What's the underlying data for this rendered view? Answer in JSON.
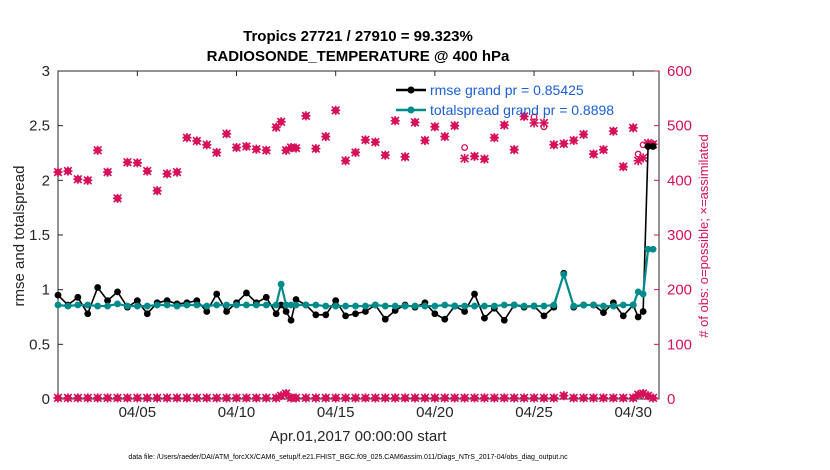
{
  "chart_data": {
    "type": "line",
    "title": "Tropics 27721 / 27910 = 99.323%",
    "subtitle": "RADIOSONDE_TEMPERATURE @ 400 hPa",
    "xlabel": "Apr.01,2017 00:00:00 start",
    "ylabel": "rmse and totalspread",
    "ylabel_right": "# of obs: o=possible; ×=assimilated",
    "footer": "data file: /Users/raeder/DAI/ATM_forcXX/CAM6_setup/f.e21.FHIST_BGC.f09_025.CAM6assim.011/Diags_NTrS_2017-04/obs_diag_output.nc",
    "xlim": [
      1.0,
      31.3
    ],
    "ylim": [
      0,
      3
    ],
    "ylim_right": [
      0,
      600
    ],
    "xticks": [
      5,
      10,
      15,
      20,
      25,
      30
    ],
    "xtick_labels": [
      "04/05",
      "04/10",
      "04/15",
      "04/20",
      "04/25",
      "04/30"
    ],
    "yticks": [
      0,
      0.5,
      1,
      1.5,
      2,
      2.5,
      3
    ],
    "ytick_labels": [
      "0",
      "0.5",
      "1",
      "1.5",
      "2",
      "2.5",
      "3"
    ],
    "yticks_right": [
      0,
      100,
      200,
      300,
      400,
      500,
      600
    ],
    "ytick_labels_right": [
      "0",
      "100",
      "200",
      "300",
      "400",
      "500",
      "600"
    ],
    "legend_position": "top-right",
    "x": [
      1.0,
      1.5,
      2.0,
      2.5,
      3.0,
      3.5,
      4.0,
      4.5,
      5.0,
      5.5,
      6.0,
      6.5,
      7.0,
      7.5,
      8.0,
      8.5,
      9.0,
      9.5,
      10.0,
      10.5,
      11.0,
      11.5,
      12.0,
      12.25,
      12.5,
      12.75,
      13.0,
      13.5,
      14.0,
      14.5,
      15.0,
      15.5,
      16.0,
      16.5,
      17.0,
      17.5,
      18.0,
      18.5,
      19.0,
      19.5,
      20.0,
      20.5,
      21.0,
      21.5,
      22.0,
      22.5,
      23.0,
      23.5,
      24.0,
      24.5,
      25.0,
      25.5,
      26.0,
      26.5,
      27.0,
      27.5,
      28.0,
      28.5,
      29.0,
      29.5,
      30.0,
      30.25,
      30.5,
      30.75,
      31.0
    ],
    "series": [
      {
        "name": "rmse grand pr = 0.85425",
        "color": "#000000",
        "values": [
          0.95,
          0.86,
          0.93,
          0.78,
          1.02,
          0.9,
          0.98,
          0.84,
          0.9,
          0.78,
          0.88,
          0.9,
          0.87,
          0.88,
          0.9,
          0.8,
          0.96,
          0.8,
          0.88,
          0.97,
          0.88,
          0.93,
          0.78,
          0.86,
          0.8,
          0.72,
          0.91,
          0.86,
          0.77,
          0.77,
          0.9,
          0.76,
          0.78,
          0.8,
          0.86,
          0.73,
          0.81,
          0.86,
          0.84,
          0.88,
          0.78,
          0.73,
          0.85,
          0.8,
          0.96,
          0.74,
          0.83,
          0.72,
          0.86,
          0.84,
          0.85,
          0.76,
          0.84,
          1.15,
          0.84,
          0.86,
          0.86,
          0.79,
          0.88,
          0.76,
          0.86,
          0.75,
          0.8,
          2.31,
          2.31
        ]
      },
      {
        "name": "totalspread grand pr = 0.8898",
        "color": "#008b8b",
        "values": [
          0.86,
          0.85,
          0.86,
          0.86,
          0.85,
          0.85,
          0.87,
          0.85,
          0.85,
          0.85,
          0.86,
          0.86,
          0.85,
          0.86,
          0.86,
          0.85,
          0.86,
          0.86,
          0.86,
          0.86,
          0.86,
          0.86,
          0.86,
          1.05,
          0.86,
          0.86,
          0.86,
          0.86,
          0.86,
          0.85,
          0.85,
          0.85,
          0.85,
          0.85,
          0.86,
          0.85,
          0.85,
          0.85,
          0.85,
          0.85,
          0.85,
          0.86,
          0.85,
          0.85,
          0.85,
          0.85,
          0.85,
          0.86,
          0.86,
          0.85,
          0.85,
          0.85,
          0.86,
          1.14,
          0.85,
          0.86,
          0.86,
          0.85,
          0.85,
          0.86,
          0.86,
          0.98,
          0.96,
          1.37,
          1.37
        ]
      }
    ],
    "obs_possible": [
      415,
      417,
      402,
      400,
      455,
      415,
      367,
      433,
      432,
      417,
      381,
      412,
      415,
      478,
      472,
      465,
      451,
      485,
      460,
      462,
      457,
      455,
      497,
      507,
      455,
      460,
      459,
      518,
      458,
      480,
      528,
      436,
      451,
      474,
      470,
      446,
      509,
      443,
      506,
      473,
      498,
      480,
      500,
      460,
      444,
      439,
      478,
      501,
      456,
      517,
      516,
      498,
      465,
      467,
      473,
      484,
      448,
      456,
      490,
      425,
      496,
      448,
      465,
      467,
      466
    ],
    "obs_assimilated": [
      415,
      417,
      402,
      400,
      455,
      415,
      367,
      433,
      432,
      417,
      381,
      412,
      415,
      478,
      472,
      465,
      451,
      485,
      460,
      462,
      457,
      455,
      497,
      507,
      455,
      460,
      459,
      518,
      458,
      480,
      528,
      436,
      451,
      474,
      470,
      446,
      509,
      443,
      506,
      473,
      498,
      480,
      500,
      440,
      444,
      439,
      478,
      501,
      456,
      517,
      505,
      505,
      465,
      467,
      473,
      484,
      448,
      456,
      490,
      425,
      496,
      436,
      441,
      468,
      466
    ],
    "obs_bottom_possible": [
      2,
      2,
      2,
      2,
      2,
      2,
      2,
      2,
      2,
      2,
      2,
      2,
      2,
      2,
      2,
      2,
      2,
      2,
      2,
      2,
      2,
      2,
      2,
      6,
      10,
      2,
      2,
      2,
      2,
      2,
      2,
      2,
      2,
      2,
      2,
      2,
      2,
      2,
      2,
      2,
      2,
      2,
      2,
      2,
      2,
      2,
      2,
      2,
      2,
      2,
      2,
      2,
      2,
      6,
      2,
      2,
      2,
      2,
      2,
      2,
      2,
      8,
      10,
      6,
      2
    ],
    "obs_bottom_assimilated": [
      2,
      2,
      2,
      2,
      2,
      2,
      2,
      2,
      2,
      2,
      2,
      2,
      2,
      2,
      2,
      2,
      2,
      2,
      2,
      2,
      2,
      2,
      2,
      6,
      10,
      2,
      2,
      2,
      2,
      2,
      2,
      2,
      2,
      2,
      2,
      2,
      2,
      2,
      2,
      2,
      2,
      2,
      2,
      2,
      2,
      2,
      2,
      2,
      2,
      2,
      2,
      2,
      2,
      6,
      2,
      2,
      2,
      2,
      2,
      2,
      2,
      8,
      10,
      6,
      2
    ],
    "obs_color": "#d6105a"
  }
}
